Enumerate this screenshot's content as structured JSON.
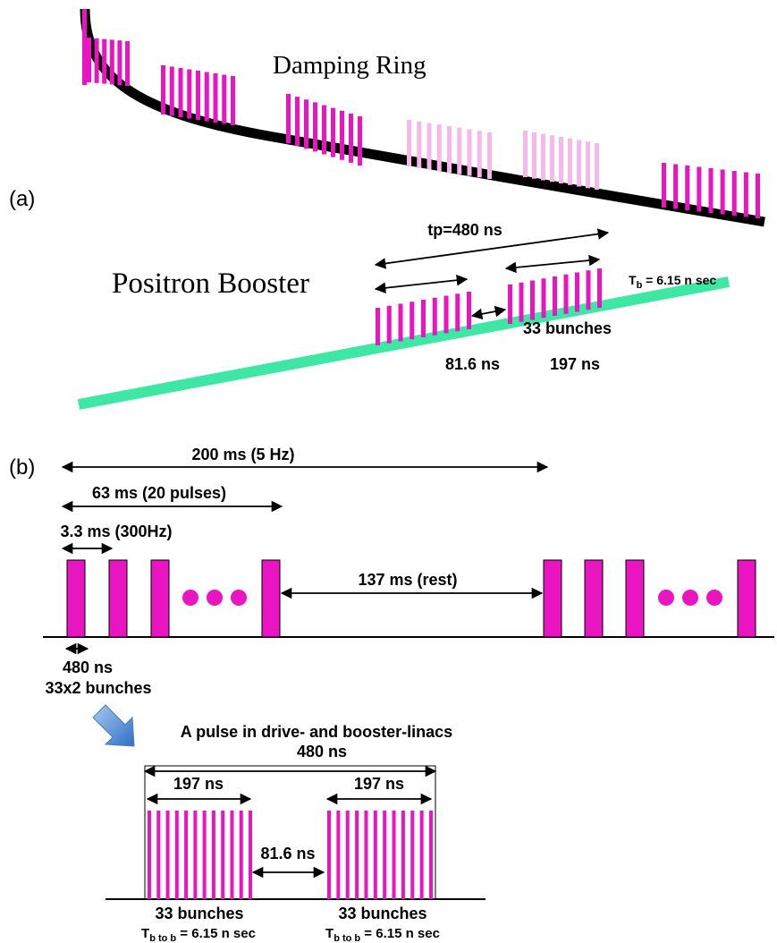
{
  "damping_ring": {
    "label": "Damping Ring"
  },
  "panel_a": {
    "label": "(a)"
  },
  "positron_booster": {
    "label": "Positron Booster",
    "tp": "tp=480 ns",
    "tb": {
      "symbol": "T",
      "subscript": "b",
      "text": " = 6.15 n sec"
    },
    "bunches": "33 bunches",
    "gap": "81.6 ns",
    "train": "197 ns"
  },
  "panel_b": {
    "label": "(b)",
    "period": "200 ms (5 Hz)",
    "burst": "63 ms (20 pulses)",
    "spacing": "3.3 ms (300Hz)",
    "rest": "137 ms (rest)",
    "pulse_length": "480 ns",
    "pulse_bunches": "33x2 bunches"
  },
  "pulse_detail": {
    "title": "A pulse in drive- and booster-linacs",
    "length": "480 ns",
    "trains": [
      {
        "duration": "197 ns",
        "bunches": "33 bunches",
        "tb": {
          "symbol": "T",
          "subscript": "b to b",
          "text": " = 6.15 n sec"
        }
      },
      {
        "duration": "197 ns",
        "bunches": "33 bunches",
        "tb": {
          "symbol": "T",
          "subscript": "b to b",
          "text": " = 6.15 n sec"
        }
      }
    ],
    "gap": "81.6 ns"
  }
}
